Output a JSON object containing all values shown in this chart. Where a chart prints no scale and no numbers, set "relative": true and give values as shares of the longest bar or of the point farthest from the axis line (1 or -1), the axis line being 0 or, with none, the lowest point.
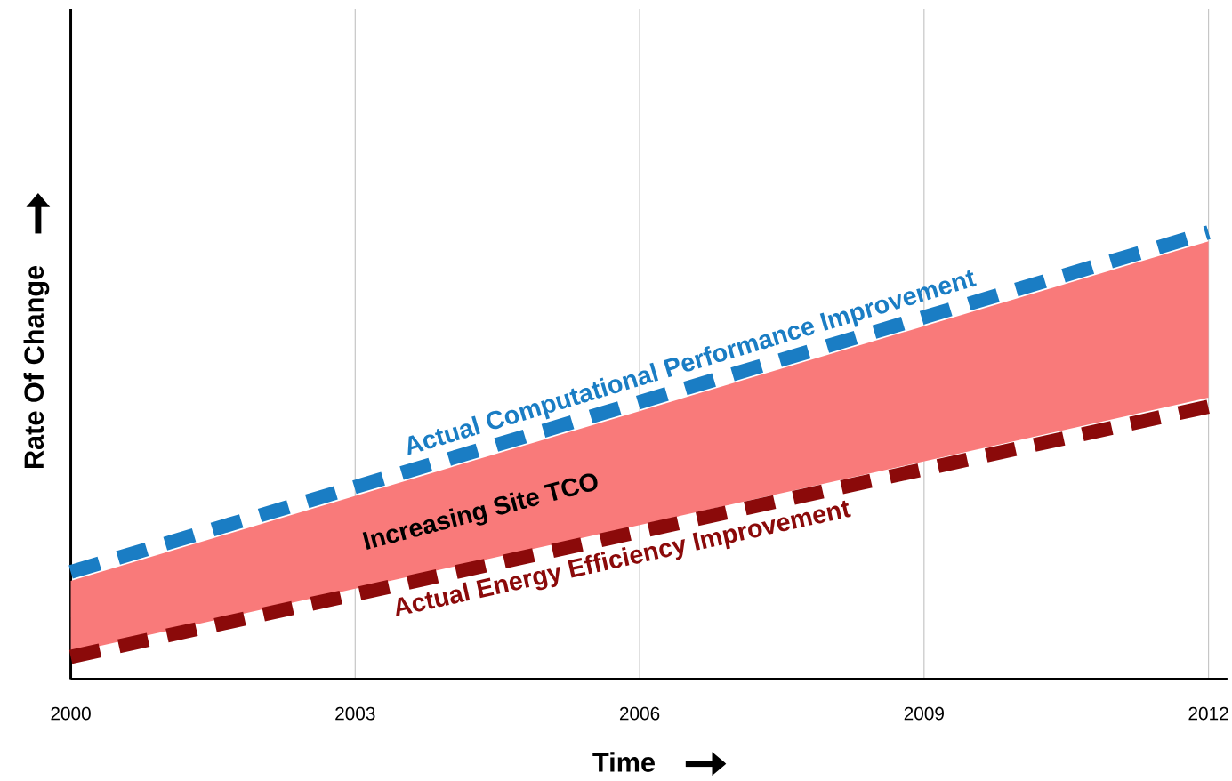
{
  "chart_data": {
    "type": "line",
    "relative": true,
    "x": [
      2000,
      2012
    ],
    "xlim": [
      2000,
      2012.2
    ],
    "xticks": [
      2000,
      2003,
      2006,
      2009,
      2012
    ],
    "grid": "x",
    "xlabel": "Time",
    "ylabel": "Rate Of Change",
    "series": [
      {
        "type": "area",
        "color": "#f97a7a",
        "values": [
          null,
          null
        ],
        "lower": [
          0.06,
          0.63
        ],
        "upper": [
          0.22,
          0.98
        ]
      },
      {
        "color": "#1a7dc4",
        "values": [
          0.24,
          1
        ],
        "line_style": "dashed"
      },
      {
        "color": "#8b0a0a",
        "values": [
          0.05,
          0.61
        ],
        "line_style": "dashed"
      }
    ],
    "annotations": [
      "Increasing Site TCO",
      "Actual Computational Performance Improvement",
      "Actual Energy Efficiency Improvement"
    ]
  }
}
